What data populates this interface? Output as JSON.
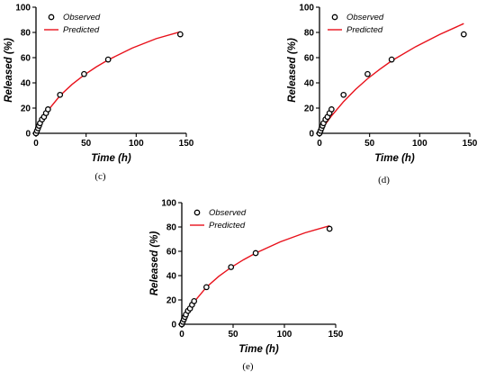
{
  "chart_data": [
    {
      "type": "scatter",
      "panel_label": "(c)",
      "xlabel": "Time (h)",
      "ylabel": "Released (%)",
      "xlim": [
        0,
        150
      ],
      "ylim": [
        0,
        100
      ],
      "xticks": [
        0,
        50,
        100,
        150
      ],
      "yticks": [
        0,
        20,
        40,
        60,
        80,
        100
      ],
      "legend_position": "top-left",
      "series": [
        {
          "name": "Observed",
          "kind": "points",
          "x": [
            0,
            1,
            2,
            3,
            4,
            6,
            8,
            10,
            12,
            24,
            48,
            72,
            144
          ],
          "y": [
            0,
            2,
            4,
            6,
            8,
            11,
            13,
            16,
            19,
            30.5,
            47,
            58.5,
            78.5
          ]
        },
        {
          "name": "Predicted",
          "kind": "line",
          "color": "#e8111b",
          "x": [
            0,
            1,
            2,
            4,
            6,
            8,
            10,
            12,
            24,
            36,
            48,
            60,
            72,
            96,
            120,
            144
          ],
          "y": [
            0,
            2,
            4,
            7.5,
            10.5,
            13.3,
            15.8,
            18.2,
            29.9,
            38.8,
            46.2,
            52.6,
            58.2,
            67.6,
            75.1,
            80.5
          ]
        }
      ]
    },
    {
      "type": "scatter",
      "panel_label": "(d)",
      "xlabel": "Time (h)",
      "ylabel": "Released (%)",
      "xlim": [
        0,
        150
      ],
      "ylim": [
        0,
        100
      ],
      "xticks": [
        0,
        50,
        100,
        150
      ],
      "yticks": [
        0,
        20,
        40,
        60,
        80,
        100
      ],
      "legend_position": "top-left",
      "series": [
        {
          "name": "Observed",
          "kind": "points",
          "x": [
            0,
            1,
            2,
            3,
            4,
            6,
            8,
            10,
            12,
            24,
            48,
            72,
            144
          ],
          "y": [
            0,
            2,
            4,
            6,
            8,
            11,
            13,
            16,
            19,
            30.5,
            47,
            58.5,
            78.5
          ]
        },
        {
          "name": "Predicted",
          "kind": "line",
          "color": "#e8111b",
          "x": [
            0,
            2,
            4,
            6,
            8,
            10,
            12,
            24,
            36,
            48,
            60,
            72,
            96,
            120,
            144
          ],
          "y": [
            0,
            2.5,
            5,
            7.3,
            9.5,
            11.7,
            13.8,
            25.1,
            34.8,
            43.3,
            50.7,
            57.5,
            68.7,
            78.4,
            87
          ]
        }
      ]
    },
    {
      "type": "scatter",
      "panel_label": "(e)",
      "xlabel": "Time (h)",
      "ylabel": "Released (%)",
      "xlim": [
        0,
        150
      ],
      "ylim": [
        0,
        100
      ],
      "xticks": [
        0,
        50,
        100,
        150
      ],
      "yticks": [
        0,
        20,
        40,
        60,
        80,
        100
      ],
      "legend_position": "top-left",
      "series": [
        {
          "name": "Observed",
          "kind": "points",
          "x": [
            0,
            1,
            2,
            3,
            4,
            6,
            8,
            10,
            12,
            24,
            48,
            72,
            144
          ],
          "y": [
            0,
            2,
            4,
            6,
            8,
            11,
            13,
            16,
            19,
            30.5,
            47,
            58.5,
            78.5
          ]
        },
        {
          "name": "Predicted",
          "kind": "line",
          "color": "#e8111b",
          "x": [
            0,
            1,
            2,
            4,
            6,
            8,
            10,
            12,
            24,
            36,
            48,
            60,
            72,
            96,
            120,
            144
          ],
          "y": [
            0,
            2.2,
            4.2,
            7.8,
            10.8,
            13.5,
            16,
            18.4,
            30.5,
            39.4,
            46.7,
            53,
            58.5,
            67.8,
            75.2,
            81
          ]
        }
      ]
    }
  ]
}
